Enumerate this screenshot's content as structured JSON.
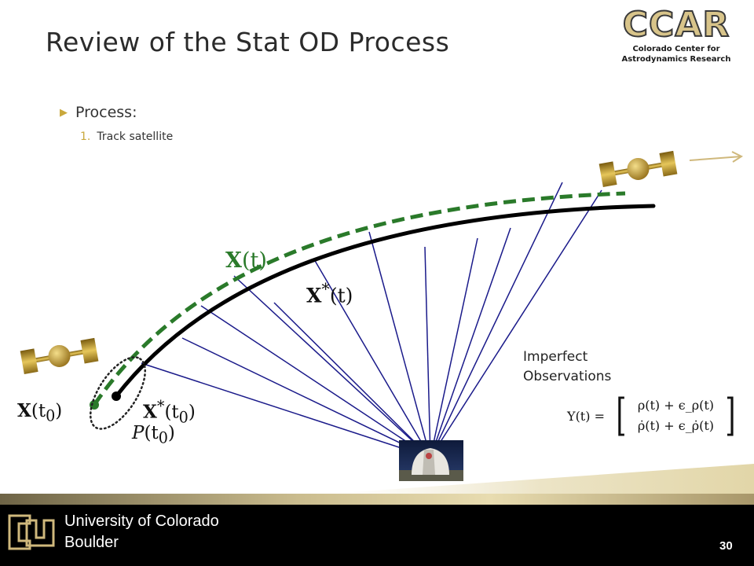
{
  "slide": {
    "title": "Review of the Stat OD Process",
    "page_number": "30"
  },
  "logo": {
    "acronym": "CCAR",
    "line1": "Colorado Center for",
    "line2": "Astrodynamics Research"
  },
  "bullets": {
    "level1": "Process:",
    "level2_number": "1.",
    "level2_text": "Track satellite"
  },
  "diagram": {
    "true_trajectory_label_main": "X",
    "true_trajectory_label_arg": "(t)",
    "reference_trajectory_label_main": "X",
    "reference_trajectory_label_sup": "*",
    "reference_trajectory_label_arg": "(t)",
    "initial_true_state_main": "X",
    "initial_true_state_arg": "(t",
    "initial_true_state_sub": "0",
    "initial_true_state_close": ")",
    "initial_reference_state_main": "X",
    "initial_reference_state_sup": "*",
    "initial_reference_state_arg": "(t",
    "initial_reference_state_sub": "0",
    "initial_reference_state_close": ")",
    "covariance_main": "P",
    "covariance_arg": "(t",
    "covariance_sub": "0",
    "covariance_close": ")",
    "observations_label_line1": "Imperfect",
    "observations_label_line2": "Observations",
    "equation_lhs": "Y(t) =",
    "equation_row1": "ρ(t) + ϵ_ρ(t)",
    "equation_row2": "ρ̇(t) + ϵ_ρ̇(t)",
    "colors": {
      "true_trajectory": "#2a7a2a",
      "reference_trajectory": "#000000",
      "observation_lines": "#1a1a8a",
      "satellite_gold": "#c9a83c",
      "accent_gold": "#cfb87c"
    }
  },
  "footer": {
    "university_line1": "University of Colorado",
    "university_line2": "Boulder"
  }
}
